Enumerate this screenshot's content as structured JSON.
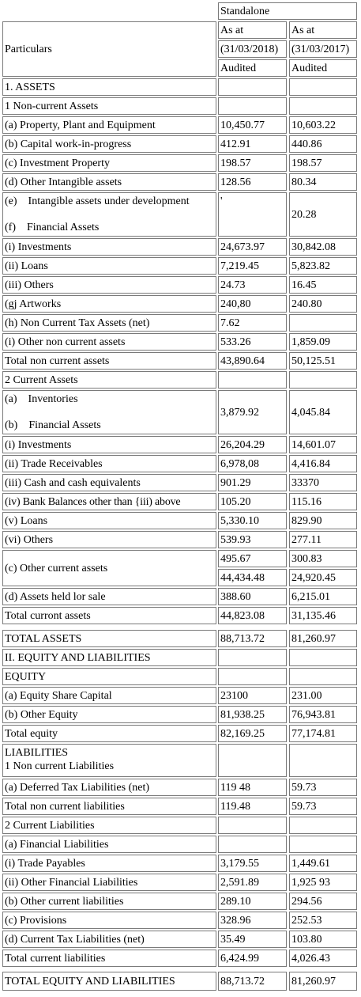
{
  "header": {
    "particulars": "Particulars",
    "standalone": "Standalone",
    "as_at_1": "As at",
    "as_at_2": "As at",
    "date_1": "(31/03/2018)",
    "date_2": "(31/03/2017)",
    "audited_1": "Audited",
    "audited_2": "Audited"
  },
  "rows": [
    {
      "label": "1. ASSETS",
      "v2018": "",
      "v2017": ""
    },
    {
      "label": "1 Non-current Assets",
      "v2018": "",
      "v2017": ""
    },
    {
      "label": "(a) Property, Plant and Equipment",
      "v2018": "10,450.77",
      "v2017": "10,603.22"
    },
    {
      "label": "(b) Capital work-in-progress",
      "v2018": "412.91",
      "v2017": "440.86"
    },
    {
      "label": "(c) Investment Property",
      "v2018": "198.57",
      "v2017": "198.57"
    },
    {
      "label": "(d) Other Intangible assets",
      "v2018": "128.56",
      "v2017": "80.34"
    },
    {
      "label": "(e)    Intangible assets under development",
      "label2": "(f)    Financial Assets",
      "v2018": "'",
      "v2017": "20.28"
    },
    {
      "label": "(i) Investments",
      "v2018": "24,673.97",
      "v2017": "30,842.08"
    },
    {
      "label": "(ii) Loans",
      "v2018": "7,219.45",
      "v2017": "5,823.82"
    },
    {
      "label": "(iii) Others",
      "v2018": "24.73",
      "v2017": "16.45"
    },
    {
      "label": "(gj Artworks",
      "v2018": "240,80",
      "v2017": "240.80"
    },
    {
      "label": "(h) Non Current Tax Assets (net)",
      "v2018": "7.62",
      "v2017": ""
    },
    {
      "label": "(i) Other non current assets",
      "v2018": "533.26",
      "v2017": "1,859.09"
    },
    {
      "label": "Total non current assets",
      "v2018": "43,890.64",
      "v2017": "50,125.51"
    },
    {
      "label": "2 Current Assets",
      "v2018": "",
      "v2017": ""
    },
    {
      "label": "(a)    Inventories",
      "label2": "(b)    Financial Assets",
      "v2018": "3,879.92",
      "v2017": "4,045.84"
    },
    {
      "label": "(i) Investments",
      "v2018": "26,204.29",
      "v2017": "14,601.07"
    },
    {
      "label": "(ii) Trade Receivables",
      "v2018": "6,978,08",
      "v2017": "4,416.84"
    },
    {
      "label": "(iii) Cash and cash equivalents",
      "v2018": "901.29",
      "v2017": "33370"
    },
    {
      "label": "(iv) Bank Balances other than {iii) above",
      "v2018": "105.20",
      "v2017": "115.16"
    },
    {
      "label": "(v) Loans",
      "v2018": "5,330.10",
      "v2017": "829.90"
    },
    {
      "label": "(vi) Others",
      "v2018": "539.93",
      "v2017": "277.11"
    },
    {
      "label": "(c) Other current assets",
      "v2018": "495.67",
      "v2017": "300.83",
      "v2018b": "44,434.48",
      "v2017b": "24,920.45"
    },
    {
      "label": "(d) Assets held lor sale",
      "v2018": "388.60",
      "v2017": "6,215.01"
    },
    {
      "label": "Total curront assets",
      "v2018": "44,823.08",
      "v2017": "31,135.46"
    },
    {
      "label": "TOTAL ASSETS",
      "v2018": "88,713.72",
      "v2017": "81,260.97"
    },
    {
      "label": "II. EQUITY AND LIABILITIES",
      "v2018": "",
      "v2017": ""
    },
    {
      "label": "EQUITY",
      "v2018": "",
      "v2017": ""
    },
    {
      "label": "(a) Equity Share Capital",
      "v2018": "23100",
      "v2017": "231.00"
    },
    {
      "label": "(b) Other Equity",
      "v2018": "81,938.25",
      "v2017": "76,943.81"
    },
    {
      "label": "Total equity",
      "v2018": "82,169.25",
      "v2017": "77,174.81"
    },
    {
      "label": "LIABILITIES",
      "label2": "1 Non current Liabilities",
      "v2018": "",
      "v2017": ""
    },
    {
      "label": "(a) Deferred Tax Liabilities (net)",
      "v2018": "119 48",
      "v2017": "59.73"
    },
    {
      "label": "Total non current liabilities",
      "v2018": "119.48",
      "v2017": "59.73"
    },
    {
      "label": "2 Current Liabilities",
      "v2018": "",
      "v2017": ""
    },
    {
      "label": "(a) Financial Liabilities",
      "v2018": "",
      "v2017": ""
    },
    {
      "label": "(i) Trade Payables",
      "v2018": "3,179.55",
      "v2017": "1,449.61"
    },
    {
      "label": "(ii) Other Financial Liabilities",
      "v2018": "2,591.89",
      "v2017": "1,925 93"
    },
    {
      "label": "(b) Other current liabilities",
      "v2018": "289.10",
      "v2017": "294.56"
    },
    {
      "label": "(c) Provisions",
      "v2018": "328.96",
      "v2017": "252.53"
    },
    {
      "label": "(d) Current Tax Liabilities (net)",
      "v2018": "35.49",
      "v2017": "103.80"
    },
    {
      "label": "Total current liabilities",
      "v2018": "6,424.99",
      "v2017": "4,026.43"
    },
    {
      "label": "TOTAL EQUITY AND LIABILITIES",
      "v2018": "88,713.72",
      "v2017": "81,260.97"
    }
  ]
}
